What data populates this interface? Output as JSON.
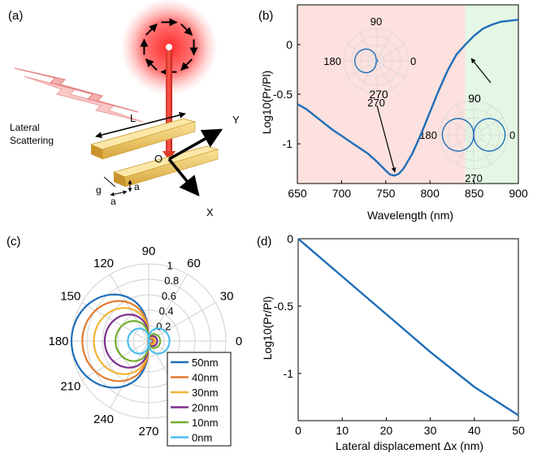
{
  "figure": {
    "panel_labels": {
      "a": "(a)",
      "b": "(b)",
      "c": "(c)",
      "d": "(d)"
    },
    "schematic": {
      "lateral_scattering": [
        "Lateral",
        "Scattering"
      ],
      "L": "L",
      "O": "O",
      "X": "X",
      "Y": "Y",
      "g": "g",
      "a1": "a",
      "a2": "a"
    }
  },
  "chart_data": [
    {
      "panel": "b",
      "type": "line",
      "xlabel": "Wavelength (nm)",
      "ylabel": "Log10(Pr/Pl)",
      "xlim": [
        650,
        900
      ],
      "ylim": [
        -1.4,
        0.4
      ],
      "xticks": [
        650,
        700,
        750,
        800,
        850,
        900
      ],
      "yticks": [
        0,
        -0.5,
        -1
      ],
      "ytick_labels": [
        "0",
        "-0.5",
        "-1"
      ],
      "shading": [
        {
          "x0": 650,
          "x1": 840,
          "color": "#fde1df"
        },
        {
          "x0": 840,
          "x1": 900,
          "color": "#e4f7e4"
        }
      ],
      "series_color": "#1f6eb8",
      "x": [
        650,
        660,
        670,
        680,
        690,
        700,
        710,
        720,
        730,
        740,
        750,
        755,
        760,
        765,
        770,
        780,
        790,
        800,
        810,
        820,
        830,
        840,
        850,
        860,
        870,
        880,
        890,
        900
      ],
      "y": [
        -0.6,
        -0.65,
        -0.72,
        -0.79,
        -0.86,
        -0.92,
        -0.98,
        -1.04,
        -1.1,
        -1.18,
        -1.27,
        -1.31,
        -1.32,
        -1.3,
        -1.25,
        -1.1,
        -0.9,
        -0.68,
        -0.46,
        -0.26,
        -0.1,
        0.0,
        0.09,
        0.16,
        0.2,
        0.23,
        0.24,
        0.25
      ],
      "insets": [
        {
          "labels": {
            "top": "90",
            "left": "180",
            "right": "0",
            "bottom": "270"
          },
          "shape": "left-lobe"
        },
        {
          "labels": {
            "left": "180",
            "right": "0",
            "bottom": "270"
          },
          "shape": "figure-eight"
        }
      ],
      "annotations": [
        "90",
        "270"
      ]
    },
    {
      "panel": "c",
      "type": "polar",
      "angle_labels": [
        "0",
        "30",
        "60",
        "90",
        "120",
        "150",
        "180",
        "210",
        "240",
        "270"
      ],
      "radial_labels": [
        "0.2",
        "0.4",
        "0.6",
        "0.8",
        "1"
      ],
      "rlim": [
        0,
        1
      ],
      "legend_position": "bottom-right",
      "series": [
        {
          "name": "50nm",
          "color": "#1f6eb8",
          "left_lobe": 1.0,
          "right_lobe": 0.05
        },
        {
          "name": "40nm",
          "color": "#e07b30",
          "left_lobe": 0.86,
          "right_lobe": 0.06
        },
        {
          "name": "30nm",
          "color": "#f0b432",
          "left_lobe": 0.71,
          "right_lobe": 0.08
        },
        {
          "name": "20nm",
          "color": "#7e2f8e",
          "left_lobe": 0.57,
          "right_lobe": 0.11
        },
        {
          "name": "10nm",
          "color": "#77ac30",
          "left_lobe": 0.43,
          "right_lobe": 0.15
        },
        {
          "name": "0nm",
          "color": "#4dbeee",
          "left_lobe": 0.27,
          "right_lobe": 0.27
        }
      ]
    },
    {
      "panel": "d",
      "type": "line",
      "xlabel": "Lateral displacement Δx (nm)",
      "ylabel": "Log10(Pr/Pl)",
      "xlim": [
        0,
        50
      ],
      "ylim": [
        -1.35,
        0
      ],
      "xticks": [
        0,
        10,
        20,
        30,
        40,
        50
      ],
      "yticks": [
        0,
        -0.5,
        -1
      ],
      "ytick_labels": [
        "0",
        "-0.5",
        "-1"
      ],
      "series_color": "#1f6eb8",
      "x": [
        0,
        10,
        20,
        30,
        40,
        50
      ],
      "y": [
        0,
        -0.28,
        -0.56,
        -0.84,
        -1.1,
        -1.31
      ]
    }
  ]
}
